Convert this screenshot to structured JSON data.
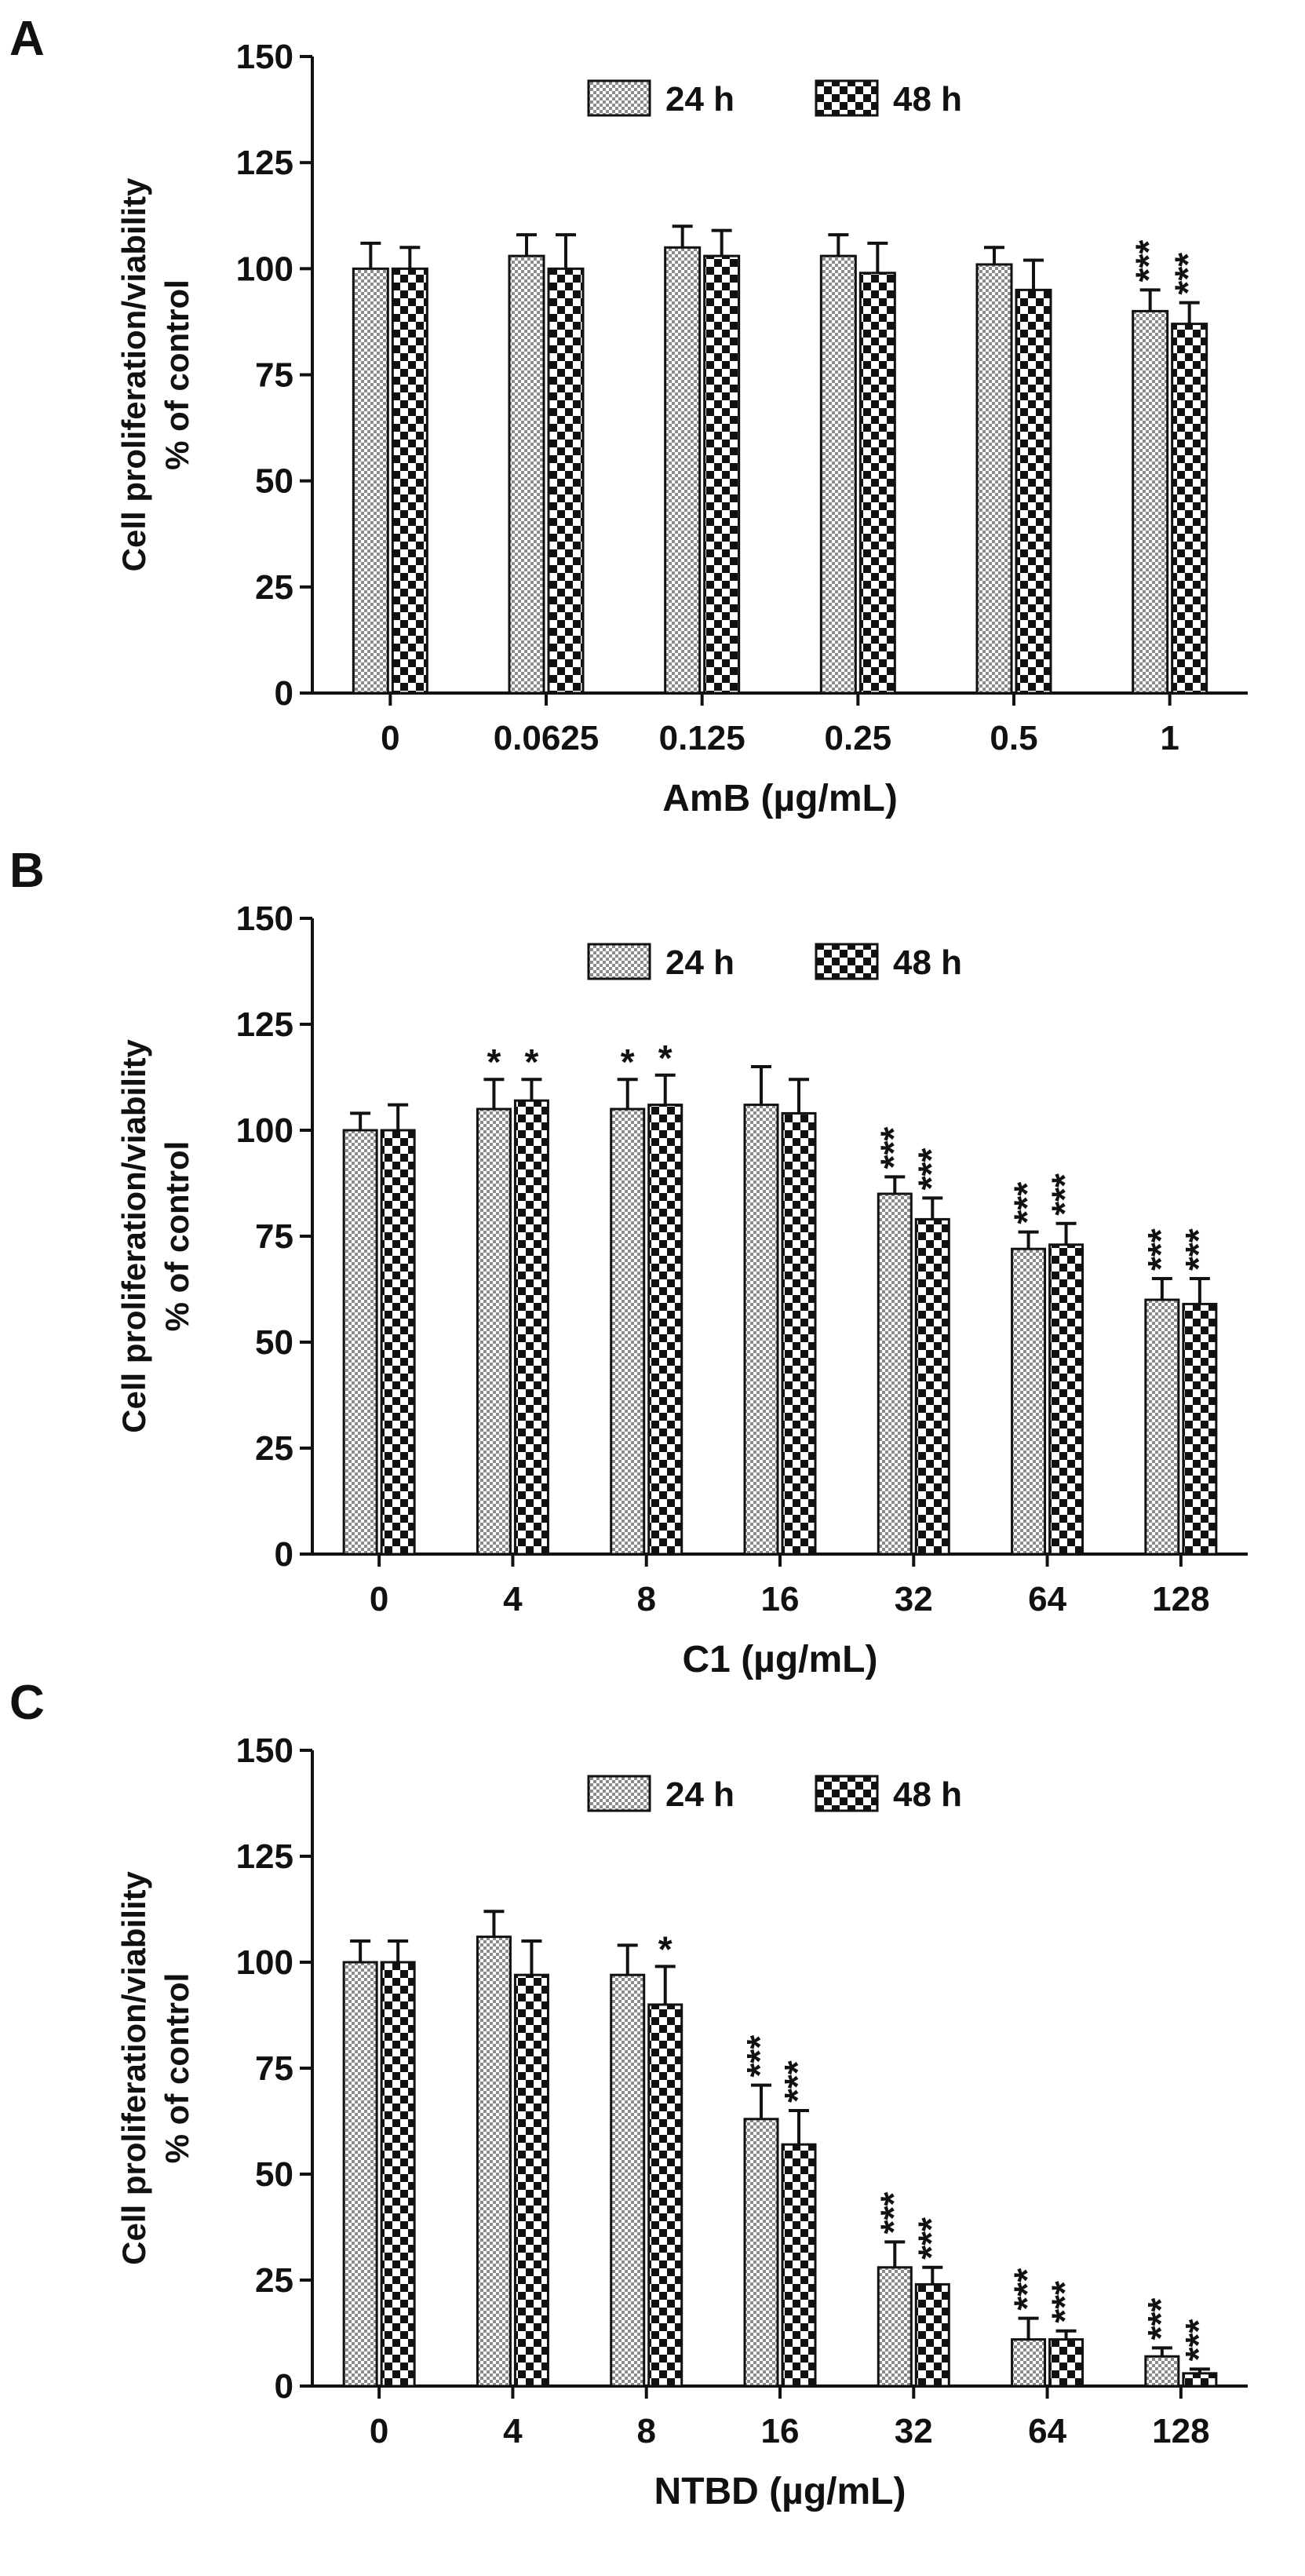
{
  "chart_data": [
    {
      "type": "bar",
      "panel": "A",
      "xlabel": "AmB (µg/mL)",
      "ylabel": "Cell proliferation/viability",
      "ylabel2": "% of control",
      "ylim": [
        0,
        150
      ],
      "yticks": [
        "0",
        "25",
        "50",
        "75",
        "100",
        "125",
        "150"
      ],
      "categories": [
        "0",
        "0.0625",
        "0.125",
        "0.25",
        "0.5",
        "1"
      ],
      "legend": [
        "24 h",
        "48 h"
      ],
      "series": [
        {
          "name": "24 h",
          "values": [
            100,
            103,
            105,
            103,
            101,
            90
          ],
          "errors": [
            6,
            5,
            5,
            5,
            4,
            5
          ],
          "annotations": [
            "",
            "",
            "",
            "",
            "",
            "***"
          ]
        },
        {
          "name": "48 h",
          "values": [
            100,
            100,
            103,
            99,
            95,
            87
          ],
          "errors": [
            5,
            8,
            6,
            7,
            7,
            5
          ],
          "annotations": [
            "",
            "",
            "",
            "",
            "",
            "***"
          ]
        }
      ]
    },
    {
      "type": "bar",
      "panel": "B",
      "xlabel": "C1 (µg/mL)",
      "ylabel": "Cell proliferation/viability",
      "ylabel2": "% of control",
      "ylim": [
        0,
        150
      ],
      "yticks": [
        "0",
        "25",
        "50",
        "75",
        "100",
        "125",
        "150"
      ],
      "categories": [
        "0",
        "4",
        "8",
        "16",
        "32",
        "64",
        "128"
      ],
      "legend": [
        "24 h",
        "48 h"
      ],
      "series": [
        {
          "name": "24 h",
          "values": [
            100,
            105,
            105,
            106,
            85,
            72,
            60
          ],
          "errors": [
            4,
            7,
            7,
            9,
            4,
            4,
            5
          ],
          "annotations": [
            "",
            "*",
            "*",
            "",
            "***",
            "***",
            "***"
          ]
        },
        {
          "name": "48 h",
          "values": [
            100,
            107,
            106,
            104,
            79,
            73,
            59
          ],
          "errors": [
            6,
            5,
            7,
            8,
            5,
            5,
            6
          ],
          "annotations": [
            "",
            "*",
            "*",
            "",
            "***",
            "***",
            "***"
          ]
        }
      ]
    },
    {
      "type": "bar",
      "panel": "C",
      "xlabel": "NTBD (µg/mL)",
      "ylabel": "Cell proliferation/viability",
      "ylabel2": "% of control",
      "ylim": [
        0,
        150
      ],
      "yticks": [
        "0",
        "25",
        "50",
        "75",
        "100",
        "125",
        "150"
      ],
      "categories": [
        "0",
        "4",
        "8",
        "16",
        "32",
        "64",
        "128"
      ],
      "legend": [
        "24 h",
        "48 h"
      ],
      "series": [
        {
          "name": "24 h",
          "values": [
            100,
            106,
            97,
            63,
            28,
            11,
            7
          ],
          "errors": [
            5,
            6,
            7,
            8,
            6,
            5,
            2
          ],
          "annotations": [
            "",
            "",
            "",
            "***",
            "***",
            "***",
            "***"
          ]
        },
        {
          "name": "48 h",
          "values": [
            100,
            97,
            90,
            57,
            24,
            11,
            3
          ],
          "errors": [
            5,
            8,
            9,
            8,
            4,
            2,
            1
          ],
          "annotations": [
            "",
            "",
            "*",
            "***",
            "***",
            "***",
            "***"
          ]
        }
      ]
    }
  ]
}
